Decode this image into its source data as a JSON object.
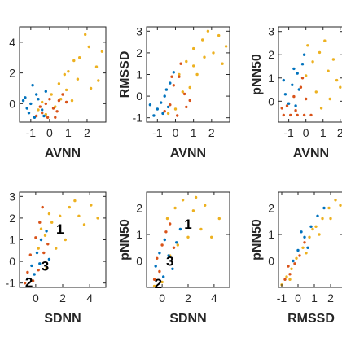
{
  "chart_data": [
    {
      "type": "scatter",
      "xlabel": "AVNN",
      "ylabel": "",
      "xlim": [
        -1.6,
        3.0
      ],
      "ylim": [
        -1.2,
        5.0
      ],
      "xticks": [
        -1,
        0,
        1,
        2
      ],
      "xtick_labels": [
        "-1",
        "0",
        "1",
        "2"
      ],
      "yticks": [
        0,
        2,
        4
      ],
      "ytick_labels": [
        "0",
        "2",
        "4"
      ],
      "annotations": [],
      "series": [
        {
          "color": "#EDB120",
          "points": [
            [
              0.1,
              0.6
            ],
            [
              0.5,
              1.3
            ],
            [
              1.0,
              2.1
            ],
            [
              1.6,
              3.0
            ],
            [
              2.1,
              3.7
            ],
            [
              2.5,
              2.4
            ],
            [
              2.2,
              1.0
            ],
            [
              0.9,
              0.9
            ],
            [
              1.5,
              1.6
            ],
            [
              0.3,
              -0.2
            ],
            [
              -0.2,
              -0.7
            ],
            [
              2.8,
              3.4
            ],
            [
              1.9,
              4.5
            ],
            [
              1.2,
              0.2
            ],
            [
              0.6,
              0.3
            ],
            [
              -0.4,
              0.1
            ],
            [
              2.6,
              1.5
            ],
            [
              1.3,
              2.8
            ],
            [
              0.8,
              1.9
            ],
            [
              -0.6,
              -0.4
            ]
          ]
        },
        {
          "color": "#D95319",
          "points": [
            [
              -0.4,
              -0.6
            ],
            [
              -0.1,
              -0.9
            ],
            [
              0.2,
              -0.3
            ],
            [
              0.5,
              0.2
            ],
            [
              0.7,
              0.6
            ],
            [
              0.0,
              0.3
            ],
            [
              -0.7,
              -0.8
            ],
            [
              0.3,
              -0.9
            ],
            [
              -0.2,
              0.0
            ],
            [
              0.9,
              0.1
            ],
            [
              0.4,
              -0.5
            ],
            [
              -0.5,
              -0.2
            ]
          ]
        },
        {
          "color": "#0072BD",
          "points": [
            [
              -1.3,
              0.4
            ],
            [
              -1.0,
              0.0
            ],
            [
              -0.7,
              0.6
            ],
            [
              -0.4,
              -0.4
            ],
            [
              -1.1,
              -0.6
            ],
            [
              -0.2,
              0.8
            ],
            [
              -0.8,
              -0.9
            ],
            [
              -1.4,
              0.2
            ],
            [
              -0.6,
              0.3
            ],
            [
              -0.9,
              1.2
            ],
            [
              -1.2,
              -0.3
            ],
            [
              -0.3,
              -0.8
            ]
          ]
        }
      ]
    },
    {
      "type": "scatter",
      "xlabel": "AVNN",
      "ylabel": "RMSSD",
      "xlim": [
        -1.6,
        3.0
      ],
      "ylim": [
        -1.2,
        3.2
      ],
      "xticks": [
        -1,
        0,
        1,
        2
      ],
      "xtick_labels": [
        "-1",
        "0",
        "1",
        "2"
      ],
      "yticks": [
        -1,
        0,
        1,
        2,
        3
      ],
      "ytick_labels": [
        "-1",
        "0",
        "1",
        "2",
        "3"
      ],
      "annotations": [],
      "series": [
        {
          "color": "#EDB120",
          "points": [
            [
              0.2,
              1.0
            ],
            [
              0.6,
              1.6
            ],
            [
              1.0,
              2.2
            ],
            [
              1.5,
              2.6
            ],
            [
              2.1,
              2.0
            ],
            [
              2.6,
              1.5
            ],
            [
              0.4,
              0.2
            ],
            [
              1.2,
              1.0
            ],
            [
              0.0,
              -0.6
            ],
            [
              1.8,
              3.0
            ],
            [
              2.4,
              2.8
            ],
            [
              0.8,
              0.4
            ],
            [
              -0.4,
              -0.8
            ],
            [
              1.6,
              1.8
            ],
            [
              2.8,
              2.3
            ],
            [
              1.0,
              1.4
            ]
          ]
        },
        {
          "color": "#D95319",
          "points": [
            [
              -0.1,
              0.5
            ],
            [
              0.2,
              0.9
            ],
            [
              0.5,
              0.1
            ],
            [
              -0.3,
              -0.4
            ],
            [
              0.1,
              -0.9
            ],
            [
              0.6,
              -0.5
            ],
            [
              -0.6,
              -0.7
            ],
            [
              0.3,
              1.5
            ],
            [
              -0.2,
              0.9
            ],
            [
              0.8,
              -0.2
            ]
          ]
        },
        {
          "color": "#0072BD",
          "points": [
            [
              -1.0,
              -0.6
            ],
            [
              -0.6,
              0.0
            ],
            [
              -0.3,
              0.6
            ],
            [
              -0.8,
              -0.3
            ],
            [
              -1.2,
              -0.9
            ],
            [
              -0.4,
              -0.5
            ],
            [
              -0.1,
              1.1
            ],
            [
              -0.7,
              -0.8
            ],
            [
              -1.4,
              -0.4
            ],
            [
              -0.5,
              0.3
            ]
          ]
        }
      ]
    },
    {
      "type": "scatter",
      "xlabel": "AVNN",
      "ylabel": "pNN50",
      "xlim": [
        -1.6,
        2.2
      ],
      "ylim": [
        -0.9,
        3.2
      ],
      "xticks": [
        -1,
        0,
        1,
        2
      ],
      "xtick_labels": [
        "-1",
        "0",
        "1",
        "2"
      ],
      "yticks": [
        0,
        1,
        2,
        3
      ],
      "ytick_labels": [
        "0",
        "1",
        "2",
        "3"
      ],
      "annotations": [],
      "series": [
        {
          "color": "#EDB120",
          "points": [
            [
              0.1,
              2.4
            ],
            [
              0.4,
              1.7
            ],
            [
              0.8,
              2.1
            ],
            [
              1.3,
              1.3
            ],
            [
              1.8,
              0.9
            ],
            [
              1.1,
              2.6
            ],
            [
              0.6,
              0.4
            ],
            [
              1.6,
              1.8
            ],
            [
              0.0,
              1.1
            ],
            [
              2.0,
              0.6
            ],
            [
              1.4,
              0.1
            ],
            [
              0.9,
              -0.3
            ]
          ]
        },
        {
          "color": "#D95319",
          "points": [
            [
              -1.3,
              -0.6
            ],
            [
              -0.9,
              -0.6
            ],
            [
              -0.5,
              -0.6
            ],
            [
              -0.1,
              -0.6
            ],
            [
              0.3,
              -0.6
            ],
            [
              -1.1,
              -0.2
            ],
            [
              -0.7,
              0.2
            ],
            [
              -0.3,
              0.6
            ],
            [
              -0.6,
              -0.4
            ],
            [
              0.0,
              0.1
            ],
            [
              -1.4,
              -0.3
            ],
            [
              -0.2,
              1.0
            ]
          ]
        },
        {
          "color": "#0072BD",
          "points": [
            [
              -1.2,
              0.3
            ],
            [
              -0.8,
              0.7
            ],
            [
              -0.5,
              1.2
            ],
            [
              -0.2,
              1.6
            ],
            [
              -1.0,
              -0.1
            ],
            [
              -0.4,
              0.5
            ],
            [
              -0.7,
              1.4
            ],
            [
              -1.3,
              0.9
            ],
            [
              -0.1,
              2.0
            ],
            [
              -0.6,
              -0.2
            ]
          ]
        }
      ]
    },
    {
      "type": "scatter",
      "xlabel": "SDNN",
      "ylabel": "",
      "xlim": [
        -1.2,
        5.2
      ],
      "ylim": [
        -1.2,
        3.2
      ],
      "xticks": [
        0,
        2,
        4
      ],
      "xtick_labels": [
        "0",
        "2",
        "4"
      ],
      "yticks": [
        -1,
        0,
        1,
        2,
        3
      ],
      "ytick_labels": [
        "-1",
        "0",
        "1",
        "2",
        "3"
      ],
      "annotations": [
        {
          "text": "1",
          "x": 1.8,
          "y": 1.5
        },
        {
          "text": "3",
          "x": 0.7,
          "y": -0.2
        },
        {
          "text": "2",
          "x": -0.5,
          "y": -0.95
        }
      ],
      "series": [
        {
          "color": "#EDB120",
          "points": [
            [
              0.2,
              0.6
            ],
            [
              0.7,
              1.2
            ],
            [
              1.2,
              1.8
            ],
            [
              1.8,
              2.1
            ],
            [
              2.5,
              2.5
            ],
            [
              3.2,
              2.1
            ],
            [
              4.1,
              2.6
            ],
            [
              2.2,
              1.0
            ],
            [
              1.5,
              0.6
            ],
            [
              0.8,
              -0.3
            ],
            [
              3.6,
              1.7
            ],
            [
              2.9,
              2.8
            ],
            [
              1.0,
              2.2
            ],
            [
              4.6,
              2.0
            ],
            [
              0.4,
              1.5
            ]
          ]
        },
        {
          "color": "#D95319",
          "points": [
            [
              -0.4,
              0.3
            ],
            [
              0.0,
              1.1
            ],
            [
              0.3,
              1.8
            ],
            [
              0.5,
              2.5
            ],
            [
              -0.6,
              -0.5
            ],
            [
              -0.2,
              -0.9
            ],
            [
              0.6,
              0.4
            ],
            [
              -0.8,
              -1.0
            ],
            [
              0.2,
              -0.4
            ],
            [
              0.9,
              0.8
            ]
          ]
        },
        {
          "color": "#0072BD",
          "points": [
            [
              -0.3,
              -0.2
            ],
            [
              0.1,
              0.4
            ],
            [
              0.4,
              1.0
            ],
            [
              -0.6,
              -0.8
            ],
            [
              0.8,
              1.4
            ],
            [
              -0.1,
              -0.6
            ],
            [
              1.0,
              0.1
            ],
            [
              0.3,
              -0.1
            ]
          ]
        }
      ]
    },
    {
      "type": "scatter",
      "xlabel": "SDNN",
      "ylabel": "pNN50",
      "xlim": [
        -1.2,
        5.2
      ],
      "ylim": [
        -1.0,
        2.6
      ],
      "xticks": [
        0,
        2,
        4
      ],
      "xtick_labels": [
        "0",
        "2",
        "4"
      ],
      "yticks": [
        0,
        1,
        2
      ],
      "ytick_labels": [
        "0",
        "1",
        "2"
      ],
      "annotations": [
        {
          "text": "1",
          "x": 2.0,
          "y": 1.4
        },
        {
          "text": "3",
          "x": 0.6,
          "y": 0.0
        },
        {
          "text": "2",
          "x": -0.3,
          "y": -0.85
        }
      ],
      "series": [
        {
          "color": "#EDB120",
          "points": [
            [
              0.4,
              1.6
            ],
            [
              1.0,
              2.0
            ],
            [
              1.6,
              2.3
            ],
            [
              2.4,
              1.9
            ],
            [
              3.3,
              2.1
            ],
            [
              4.4,
              1.6
            ],
            [
              2.0,
              0.9
            ],
            [
              1.2,
              0.6
            ],
            [
              3.0,
              1.2
            ],
            [
              0.6,
              0.2
            ],
            [
              3.8,
              0.9
            ],
            [
              0.0,
              -0.8
            ],
            [
              -0.6,
              -0.95
            ],
            [
              2.6,
              2.4
            ]
          ]
        },
        {
          "color": "#D95319",
          "points": [
            [
              -0.4,
              0.1
            ],
            [
              0.0,
              0.6
            ],
            [
              0.3,
              1.1
            ],
            [
              -0.2,
              -0.4
            ],
            [
              0.6,
              1.4
            ],
            [
              -0.6,
              -0.7
            ],
            [
              0.9,
              0.5
            ]
          ]
        },
        {
          "color": "#0072BD",
          "points": [
            [
              -0.2,
              0.3
            ],
            [
              0.2,
              0.8
            ],
            [
              0.5,
              0.2
            ],
            [
              0.8,
              -0.3
            ],
            [
              -0.5,
              -0.2
            ],
            [
              1.1,
              0.7
            ],
            [
              1.4,
              1.2
            ],
            [
              0.1,
              -0.6
            ]
          ]
        }
      ]
    },
    {
      "type": "scatter",
      "xlabel": "RMSSD",
      "ylabel": "pNN50",
      "xlim": [
        -1.2,
        2.8
      ],
      "ylim": [
        -1.0,
        2.6
      ],
      "xticks": [
        -1,
        0,
        1,
        2
      ],
      "xtick_labels": [
        "-1",
        "0",
        "1",
        "2"
      ],
      "yticks": [
        0,
        1,
        2
      ],
      "ytick_labels": [
        "0",
        "1",
        "2"
      ],
      "annotations": [],
      "series": [
        {
          "color": "#EDB120",
          "points": [
            [
              -1.0,
              -0.9
            ],
            [
              -0.7,
              -0.6
            ],
            [
              -0.4,
              -0.3
            ],
            [
              -0.1,
              0.1
            ],
            [
              0.3,
              0.5
            ],
            [
              0.7,
              0.9
            ],
            [
              1.1,
              1.3
            ],
            [
              1.5,
              1.6
            ],
            [
              1.9,
              2.0
            ],
            [
              2.3,
              2.3
            ],
            [
              2.6,
              2.1
            ],
            [
              0.5,
              0.3
            ],
            [
              1.3,
              1.0
            ],
            [
              -0.5,
              -0.7
            ],
            [
              2.0,
              1.6
            ],
            [
              0.9,
              1.2
            ]
          ]
        },
        {
          "color": "#D95319",
          "points": [
            [
              -0.8,
              -0.7
            ],
            [
              -0.5,
              -0.5
            ],
            [
              -0.2,
              -0.1
            ],
            [
              0.1,
              0.2
            ],
            [
              0.4,
              0.7
            ],
            [
              -0.6,
              -0.2
            ]
          ]
        },
        {
          "color": "#0072BD",
          "points": [
            [
              -0.3,
              0.0
            ],
            [
              0.0,
              0.4
            ],
            [
              0.4,
              0.9
            ],
            [
              0.8,
              1.3
            ],
            [
              1.2,
              1.7
            ],
            [
              1.6,
              2.0
            ],
            [
              0.2,
              1.1
            ],
            [
              0.6,
              0.5
            ]
          ]
        }
      ]
    }
  ]
}
